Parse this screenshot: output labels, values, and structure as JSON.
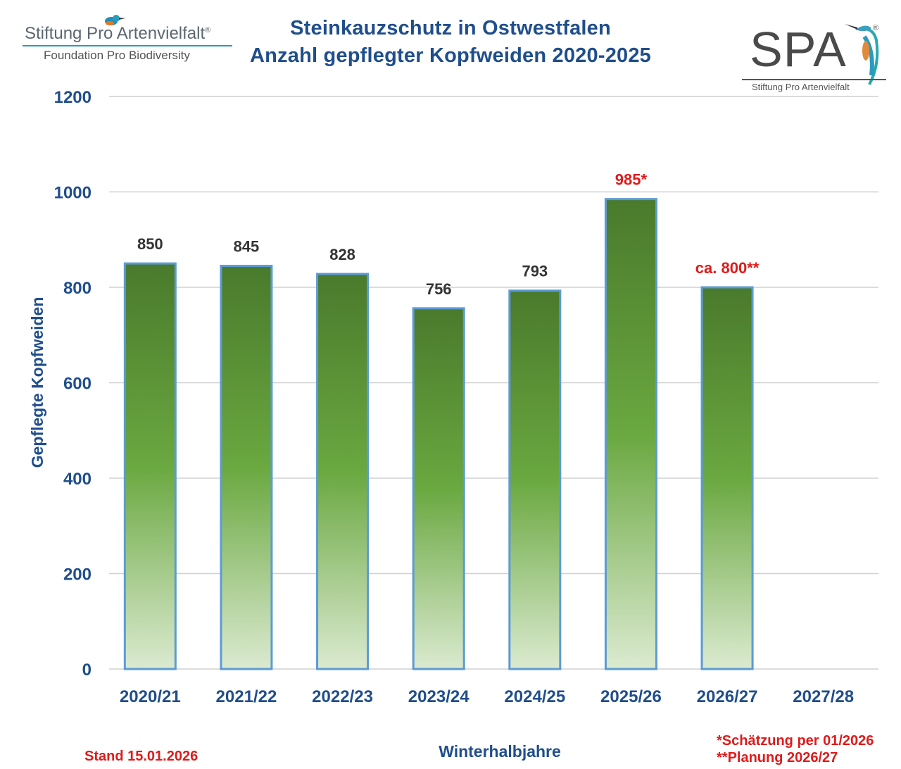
{
  "logo_left": {
    "brand": "Stiftung Pro Artenvielfalt",
    "registered": "®",
    "subtitle": "Foundation Pro Biodiversity"
  },
  "logo_right": {
    "letters": "SPA",
    "registered": "®",
    "subtitle": "Stiftung Pro Artenvielfalt"
  },
  "footer": {
    "stand": "Stand 15.01.2026",
    "note1": "*Schätzung per 01/2026",
    "note2": "**Planung 2026/27"
  },
  "colors": {
    "axis_text": "#1f4e8c",
    "label_default": "#333333",
    "label_highlight": "#e01a1a",
    "bar_top": "#4a7a2c",
    "bar_mid": "#6aa840",
    "bar_bottom": "#dbead0",
    "bar_outline": "#5b9bd5",
    "gridline": "#d0d0d0"
  },
  "chart_data": {
    "type": "bar",
    "title": "Steinkauzschutz in Ostwestfalen",
    "subtitle": "Anzahl gepflegter Kopfweiden 2020-2025",
    "xlabel": "Winterhalbjahre",
    "ylabel": "Gepflegte Kopfweiden",
    "categories": [
      "2020/21",
      "2021/22",
      "2022/23",
      "2023/24",
      "2024/25",
      "2025/26",
      "2026/27",
      "2027/28"
    ],
    "values": [
      850,
      845,
      828,
      756,
      793,
      985,
      800,
      null
    ],
    "data_labels": [
      "850",
      "845",
      "828",
      "756",
      "793",
      "985*",
      "ca. 800**",
      ""
    ],
    "highlight": [
      false,
      false,
      false,
      false,
      false,
      true,
      true,
      false
    ],
    "yticks": [
      0,
      200,
      400,
      600,
      800,
      1000,
      1200
    ],
    "ylim": [
      0,
      1200
    ],
    "grid": true
  }
}
